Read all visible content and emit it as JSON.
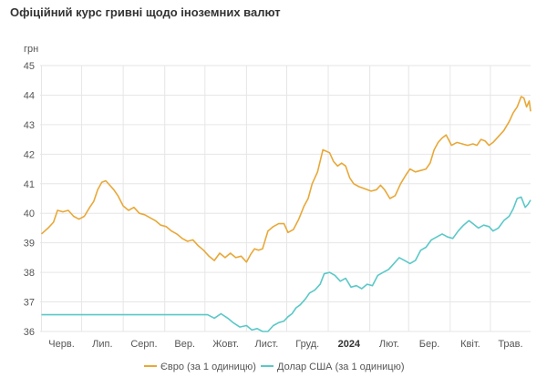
{
  "chart_data": {
    "type": "line",
    "title": "Офіційний курс гривні щодо іноземних валют",
    "ylabel": "грн",
    "ylim": [
      36,
      45
    ],
    "yticks": [
      36,
      37,
      38,
      39,
      40,
      41,
      42,
      43,
      44,
      45
    ],
    "xlim": [
      "2023-05-31",
      "2024-05-31"
    ],
    "xticks": [
      {
        "date": "2023-06-01",
        "label": "Черв.",
        "bold": false
      },
      {
        "date": "2023-07-01",
        "label": "Лип.",
        "bold": false
      },
      {
        "date": "2023-08-01",
        "label": "Серп.",
        "bold": false
      },
      {
        "date": "2023-09-01",
        "label": "Вер.",
        "bold": false
      },
      {
        "date": "2023-10-01",
        "label": "Жовт.",
        "bold": false
      },
      {
        "date": "2023-11-01",
        "label": "Лист.",
        "bold": false
      },
      {
        "date": "2023-12-01",
        "label": "Груд.",
        "bold": false
      },
      {
        "date": "2024-01-01",
        "label": "2024",
        "bold": true
      },
      {
        "date": "2024-02-01",
        "label": "Лют.",
        "bold": false
      },
      {
        "date": "2024-03-01",
        "label": "Бер.",
        "bold": false
      },
      {
        "date": "2024-04-01",
        "label": "Квіт.",
        "bold": false
      },
      {
        "date": "2024-05-01",
        "label": "Трав.",
        "bold": false
      }
    ],
    "grid": true,
    "legend_position": "bottom",
    "series": [
      {
        "name": "Євро (за 1 одиницю)",
        "color": "#e8a838",
        "points": [
          [
            "2023-06-01",
            39.3
          ],
          [
            "2023-06-06",
            39.5
          ],
          [
            "2023-06-10",
            39.7
          ],
          [
            "2023-06-13",
            40.1
          ],
          [
            "2023-06-17",
            40.05
          ],
          [
            "2023-06-21",
            40.1
          ],
          [
            "2023-06-25",
            39.9
          ],
          [
            "2023-06-29",
            39.8
          ],
          [
            "2023-07-03",
            39.9
          ],
          [
            "2023-07-07",
            40.2
          ],
          [
            "2023-07-10",
            40.4
          ],
          [
            "2023-07-13",
            40.8
          ],
          [
            "2023-07-16",
            41.05
          ],
          [
            "2023-07-19",
            41.1
          ],
          [
            "2023-07-22",
            40.95
          ],
          [
            "2023-07-25",
            40.8
          ],
          [
            "2023-07-28",
            40.6
          ],
          [
            "2023-08-01",
            40.25
          ],
          [
            "2023-08-05",
            40.1
          ],
          [
            "2023-08-09",
            40.2
          ],
          [
            "2023-08-13",
            40.0
          ],
          [
            "2023-08-17",
            39.95
          ],
          [
            "2023-08-21",
            39.85
          ],
          [
            "2023-08-25",
            39.75
          ],
          [
            "2023-08-29",
            39.6
          ],
          [
            "2023-09-02",
            39.55
          ],
          [
            "2023-09-06",
            39.4
          ],
          [
            "2023-09-10",
            39.3
          ],
          [
            "2023-09-14",
            39.15
          ],
          [
            "2023-09-18",
            39.05
          ],
          [
            "2023-09-22",
            39.1
          ],
          [
            "2023-09-26",
            38.9
          ],
          [
            "2023-09-30",
            38.75
          ],
          [
            "2023-10-04",
            38.55
          ],
          [
            "2023-10-08",
            38.4
          ],
          [
            "2023-10-12",
            38.65
          ],
          [
            "2023-10-16",
            38.5
          ],
          [
            "2023-10-20",
            38.65
          ],
          [
            "2023-10-24",
            38.5
          ],
          [
            "2023-10-28",
            38.55
          ],
          [
            "2023-11-01",
            38.35
          ],
          [
            "2023-11-04",
            38.6
          ],
          [
            "2023-11-07",
            38.8
          ],
          [
            "2023-11-10",
            38.75
          ],
          [
            "2023-11-13",
            38.8
          ],
          [
            "2023-11-17",
            39.4
          ],
          [
            "2023-11-21",
            39.55
          ],
          [
            "2023-11-25",
            39.65
          ],
          [
            "2023-11-29",
            39.65
          ],
          [
            "2023-12-02",
            39.35
          ],
          [
            "2023-12-06",
            39.45
          ],
          [
            "2023-12-10",
            39.8
          ],
          [
            "2023-12-14",
            40.25
          ],
          [
            "2023-12-17",
            40.5
          ],
          [
            "2023-12-20",
            41.0
          ],
          [
            "2023-12-24",
            41.4
          ],
          [
            "2023-12-28",
            42.15
          ],
          [
            "2024-01-02",
            42.05
          ],
          [
            "2024-01-05",
            41.75
          ],
          [
            "2024-01-08",
            41.6
          ],
          [
            "2024-01-11",
            41.7
          ],
          [
            "2024-01-14",
            41.6
          ],
          [
            "2024-01-17",
            41.2
          ],
          [
            "2024-01-20",
            41.0
          ],
          [
            "2024-01-24",
            40.9
          ],
          [
            "2024-01-27",
            40.85
          ],
          [
            "2024-01-30",
            40.8
          ],
          [
            "2024-02-02",
            40.75
          ],
          [
            "2024-02-06",
            40.8
          ],
          [
            "2024-02-09",
            40.95
          ],
          [
            "2024-02-12",
            40.8
          ],
          [
            "2024-02-16",
            40.5
          ],
          [
            "2024-02-20",
            40.6
          ],
          [
            "2024-02-24",
            41.0
          ],
          [
            "2024-02-28",
            41.3
          ],
          [
            "2024-03-02",
            41.5
          ],
          [
            "2024-03-06",
            41.4
          ],
          [
            "2024-03-10",
            41.45
          ],
          [
            "2024-03-14",
            41.5
          ],
          [
            "2024-03-17",
            41.7
          ],
          [
            "2024-03-20",
            42.15
          ],
          [
            "2024-03-23",
            42.4
          ],
          [
            "2024-03-26",
            42.55
          ],
          [
            "2024-03-29",
            42.65
          ],
          [
            "2024-04-02",
            42.3
          ],
          [
            "2024-04-06",
            42.4
          ],
          [
            "2024-04-10",
            42.35
          ],
          [
            "2024-04-14",
            42.3
          ],
          [
            "2024-04-18",
            42.35
          ],
          [
            "2024-04-21",
            42.3
          ],
          [
            "2024-04-24",
            42.5
          ],
          [
            "2024-04-27",
            42.45
          ],
          [
            "2024-04-30",
            42.3
          ],
          [
            "2024-05-03",
            42.4
          ],
          [
            "2024-05-07",
            42.6
          ],
          [
            "2024-05-11",
            42.8
          ],
          [
            "2024-05-15",
            43.1
          ],
          [
            "2024-05-18",
            43.4
          ],
          [
            "2024-05-21",
            43.6
          ],
          [
            "2024-05-24",
            43.95
          ],
          [
            "2024-05-26",
            43.9
          ],
          [
            "2024-05-28",
            43.6
          ],
          [
            "2024-05-30",
            43.8
          ],
          [
            "2024-05-31",
            43.45
          ]
        ]
      },
      {
        "name": "Долар США (за 1 одиницю)",
        "color": "#5bc8c8",
        "points": [
          [
            "2023-06-01",
            36.5686
          ],
          [
            "2023-10-03",
            36.5686
          ],
          [
            "2023-10-08",
            36.45
          ],
          [
            "2023-10-13",
            36.6
          ],
          [
            "2023-10-18",
            36.45
          ],
          [
            "2023-10-22",
            36.3
          ],
          [
            "2023-10-27",
            36.15
          ],
          [
            "2023-11-01",
            36.2
          ],
          [
            "2023-11-05",
            36.05
          ],
          [
            "2023-11-09",
            36.1
          ],
          [
            "2023-11-13",
            36.0
          ],
          [
            "2023-11-17",
            36.0
          ],
          [
            "2023-11-21",
            36.2
          ],
          [
            "2023-11-25",
            36.3
          ],
          [
            "2023-11-29",
            36.35
          ],
          [
            "2023-12-02",
            36.5
          ],
          [
            "2023-12-05",
            36.6
          ],
          [
            "2023-12-08",
            36.8
          ],
          [
            "2023-12-11",
            36.9
          ],
          [
            "2023-12-15",
            37.1
          ],
          [
            "2023-12-18",
            37.3
          ],
          [
            "2023-12-22",
            37.4
          ],
          [
            "2023-12-26",
            37.6
          ],
          [
            "2023-12-29",
            37.95
          ],
          [
            "2024-01-02",
            38.0
          ],
          [
            "2024-01-06",
            37.9
          ],
          [
            "2024-01-10",
            37.7
          ],
          [
            "2024-01-14",
            37.8
          ],
          [
            "2024-01-18",
            37.5
          ],
          [
            "2024-01-22",
            37.55
          ],
          [
            "2024-01-26",
            37.45
          ],
          [
            "2024-01-30",
            37.6
          ],
          [
            "2024-02-03",
            37.55
          ],
          [
            "2024-02-07",
            37.9
          ],
          [
            "2024-02-11",
            38.0
          ],
          [
            "2024-02-15",
            38.1
          ],
          [
            "2024-02-19",
            38.3
          ],
          [
            "2024-02-23",
            38.5
          ],
          [
            "2024-02-27",
            38.4
          ],
          [
            "2024-03-02",
            38.3
          ],
          [
            "2024-03-06",
            38.4
          ],
          [
            "2024-03-10",
            38.75
          ],
          [
            "2024-03-14",
            38.85
          ],
          [
            "2024-03-18",
            39.1
          ],
          [
            "2024-03-22",
            39.2
          ],
          [
            "2024-03-26",
            39.3
          ],
          [
            "2024-03-30",
            39.2
          ],
          [
            "2024-04-03",
            39.15
          ],
          [
            "2024-04-07",
            39.4
          ],
          [
            "2024-04-11",
            39.6
          ],
          [
            "2024-04-15",
            39.75
          ],
          [
            "2024-04-18",
            39.65
          ],
          [
            "2024-04-22",
            39.5
          ],
          [
            "2024-04-26",
            39.6
          ],
          [
            "2024-04-30",
            39.55
          ],
          [
            "2024-05-03",
            39.4
          ],
          [
            "2024-05-07",
            39.5
          ],
          [
            "2024-05-11",
            39.75
          ],
          [
            "2024-05-15",
            39.9
          ],
          [
            "2024-05-18",
            40.15
          ],
          [
            "2024-05-21",
            40.5
          ],
          [
            "2024-05-24",
            40.55
          ],
          [
            "2024-05-27",
            40.2
          ],
          [
            "2024-05-29",
            40.3
          ],
          [
            "2024-05-31",
            40.45
          ]
        ]
      }
    ]
  }
}
